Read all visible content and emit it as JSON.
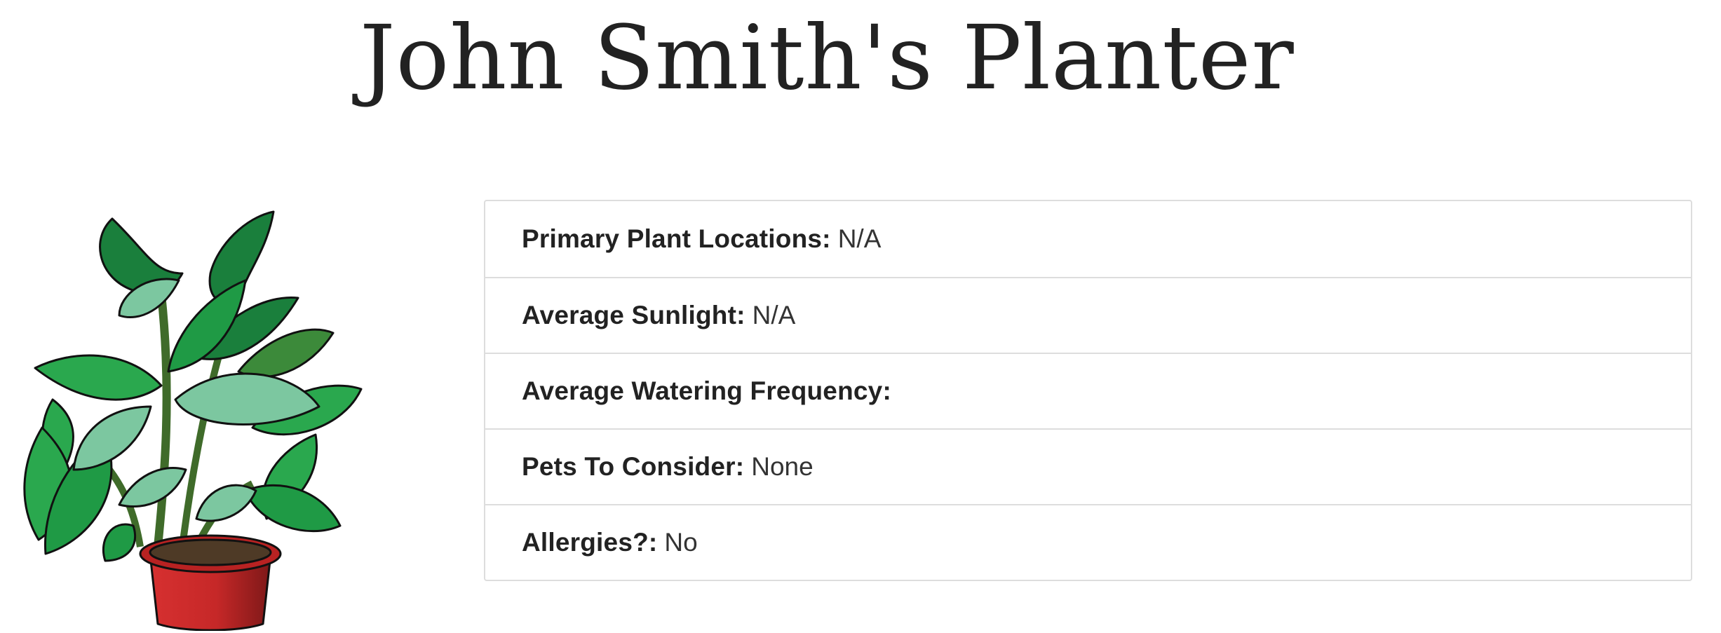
{
  "header": {
    "title": "John Smith's Planter"
  },
  "plant_image": {
    "icon": "potted-plant-icon",
    "colors": {
      "leaf_dark": "#1a7f3c",
      "leaf_mid": "#2aa84e",
      "leaf_light": "#7cc7a0",
      "stem": "#3f6b2a",
      "pot": "#c62828",
      "pot_shade": "#8e1c1c",
      "soil": "#4e3a26"
    }
  },
  "details": {
    "items": [
      {
        "label": "Primary Plant Locations:",
        "value": "N/A"
      },
      {
        "label": "Average Sunlight:",
        "value": "N/A"
      },
      {
        "label": "Average Watering Frequency:",
        "value": ""
      },
      {
        "label": "Pets To Consider:",
        "value": "None"
      },
      {
        "label": "Allergies?:",
        "value": "No"
      }
    ]
  }
}
